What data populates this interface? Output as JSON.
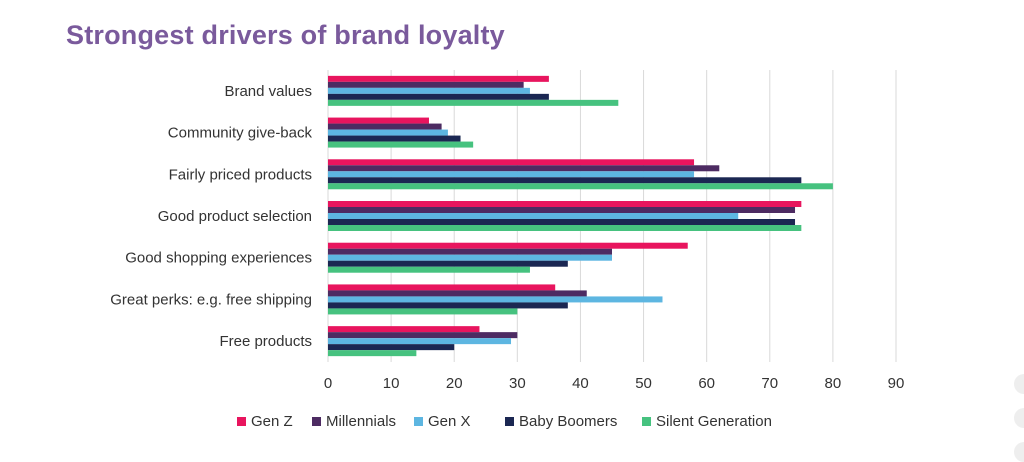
{
  "chart_data": {
    "type": "bar",
    "orientation": "horizontal",
    "title": "Strongest drivers of brand loyalty",
    "categories": [
      "Brand values",
      "Community give-back",
      "Fairly priced products",
      "Good product selection",
      "Good shopping experiences",
      "Great perks: e.g. free shipping",
      "Free products"
    ],
    "series": [
      {
        "name": "Gen Z",
        "color": "#e8155e",
        "values": [
          35,
          16,
          58,
          75,
          57,
          36,
          24
        ]
      },
      {
        "name": "Millennials",
        "color": "#4d2b62",
        "values": [
          31,
          18,
          62,
          74,
          45,
          41,
          30
        ]
      },
      {
        "name": "Gen X",
        "color": "#5db6e1",
        "values": [
          32,
          19,
          58,
          65,
          45,
          53,
          29
        ]
      },
      {
        "name": "Baby Boomers",
        "color": "#1b2752",
        "values": [
          35,
          21,
          75,
          74,
          38,
          38,
          20
        ]
      },
      {
        "name": "Silent Generation",
        "color": "#46c27f",
        "values": [
          46,
          23,
          80,
          75,
          32,
          30,
          14
        ]
      }
    ],
    "xlim": [
      0,
      90
    ],
    "xticks": [
      0,
      10,
      20,
      30,
      40,
      50,
      60,
      70,
      80,
      90
    ],
    "grid": true,
    "legend_position": "bottom"
  }
}
